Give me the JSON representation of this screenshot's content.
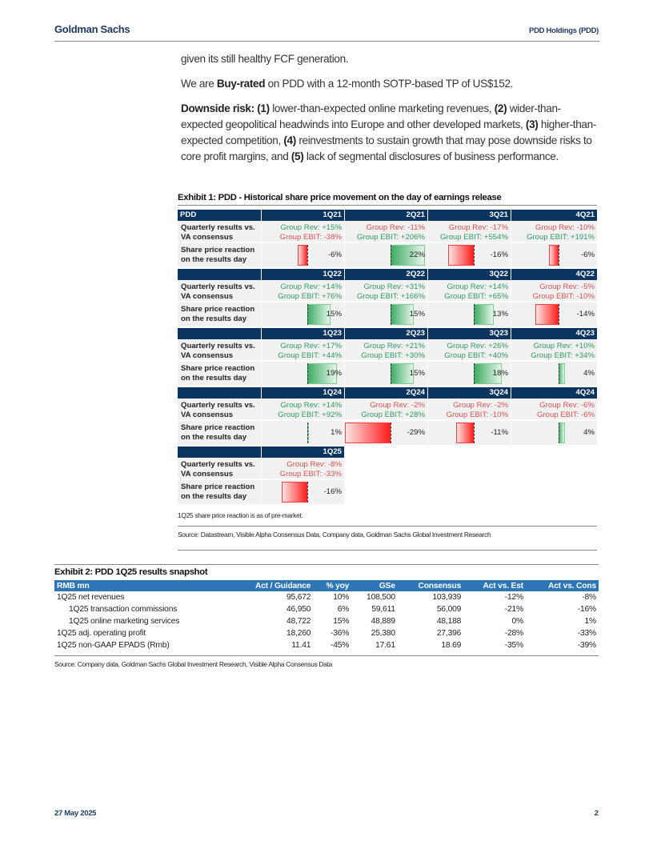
{
  "header": {
    "brand": "Goldman Sachs",
    "company": "PDD Holdings (PDD)"
  },
  "body": {
    "p1": "given its still healthy FCF generation.",
    "p2": {
      "pre": "We are ",
      "bold": "Buy-rated",
      "post": " on PDD with a 12-month SOTP-based TP of US$152."
    },
    "p3": [
      {
        "b": "Downside risk: (1)"
      },
      {
        "t": " lower-than-expected online marketing revenues, "
      },
      {
        "b": "(2)"
      },
      {
        "t": " wider-than-expected geopolitical headwinds into Europe and other developed markets, "
      },
      {
        "b": "(3)"
      },
      {
        "t": " higher-than-expected competition, "
      },
      {
        "b": "(4)"
      },
      {
        "t": " reinvestments to sustain growth that may pose downside risks to core profit margins, and "
      },
      {
        "b": "(5)"
      },
      {
        "t": " lack of segmental disclosures of business performance."
      }
    ]
  },
  "exhibit1": {
    "title": "Exhibit 1: PDD - Historical share price movement on the day of earnings release",
    "corner_label": "PDD",
    "row_label_results": "Quarterly results vs.\nVA consensus",
    "row_label_reaction": "Share price reaction\non the results day",
    "colors": {
      "positive": "#2f9a5e",
      "negative": "#d95050",
      "header": "#0b3560"
    },
    "blocks": [
      [
        {
          "q": "1Q21",
          "rev": "Group Rev: +15%",
          "ebit": "Group EBIT: -38%",
          "reaction": -6,
          "reaction_label": "-6%"
        },
        {
          "q": "2Q21",
          "rev": "Group Rev: -11%",
          "ebit": "Group EBIT: +206%",
          "reaction": 22,
          "reaction_label": "22%"
        },
        {
          "q": "3Q21",
          "rev": "Group Rev: -17%",
          "ebit": "Group EBIT: +554%",
          "reaction": -16,
          "reaction_label": "-16%"
        },
        {
          "q": "4Q21",
          "rev": "Group Rev: -10%",
          "ebit": "Group EBIT: +191%",
          "reaction": -6,
          "reaction_label": "-6%"
        }
      ],
      [
        {
          "q": "1Q22",
          "rev": "Group Rev: +14%",
          "ebit": "Group EBIT: +76%",
          "reaction": 15,
          "reaction_label": "15%"
        },
        {
          "q": "2Q22",
          "rev": "Group Rev: +31%",
          "ebit": "Group EBIT: +166%",
          "reaction": 15,
          "reaction_label": "15%"
        },
        {
          "q": "3Q22",
          "rev": "Group Rev: +14%",
          "ebit": "Group EBIT: +65%",
          "reaction": 13,
          "reaction_label": "13%"
        },
        {
          "q": "4Q22",
          "rev": "Group Rev: -5%",
          "ebit": "Group EBIT: -10%",
          "reaction": -14,
          "reaction_label": "-14%"
        }
      ],
      [
        {
          "q": "1Q23",
          "rev": "Group Rev: +17%",
          "ebit": "Group EBIT: +44%",
          "reaction": 19,
          "reaction_label": "19%"
        },
        {
          "q": "2Q23",
          "rev": "Group Rev: +21%",
          "ebit": "Group EBIT: +30%",
          "reaction": 15,
          "reaction_label": "15%"
        },
        {
          "q": "3Q23",
          "rev": "Group Rev: +26%",
          "ebit": "Group EBIT: +40%",
          "reaction": 18,
          "reaction_label": "18%"
        },
        {
          "q": "4Q23",
          "rev": "Group Rev: +10%",
          "ebit": "Group EBIT: +34%",
          "reaction": 4,
          "reaction_label": "4%"
        }
      ],
      [
        {
          "q": "1Q24",
          "rev": "Group Rev: +14%",
          "ebit": "Group EBIT: +92%",
          "reaction": 1,
          "reaction_label": "1%"
        },
        {
          "q": "2Q24",
          "rev": "Group Rev: -2%",
          "ebit": "Group EBIT: +28%",
          "reaction": -29,
          "reaction_label": "-29%"
        },
        {
          "q": "3Q24",
          "rev": "Group Rev: -2%",
          "ebit": "Group EBIT: -10%",
          "reaction": -11,
          "reaction_label": "-11%"
        },
        {
          "q": "4Q24",
          "rev": "Group Rev: -6%",
          "ebit": "Group EBIT: -6%",
          "reaction": 4,
          "reaction_label": "4%"
        }
      ],
      [
        {
          "q": "1Q25",
          "rev": "Group Rev: -8%",
          "ebit": "Group EBIT: -33%",
          "reaction": -16,
          "reaction_label": "-16%"
        }
      ]
    ],
    "note": "1Q25 share price reaction is as of pre-market.",
    "source": "Source: Datastream, Visible Alpha Consensus Data, Company data, Goldman Sachs Global Investment Research"
  },
  "exhibit2": {
    "title": "Exhibit 2: PDD 1Q25 results snapshot",
    "header_color": "#2e75b6",
    "columns": [
      "RMB mn",
      "Act / Guidance",
      "% yoy",
      "GSe",
      "Consensus",
      "Act vs. Est",
      "Act vs. Cons"
    ],
    "rows": [
      {
        "indent": false,
        "cells": [
          "1Q25 net revenues",
          "95,672",
          "10%",
          "108,500",
          "103,939",
          "-12%",
          "-8%"
        ]
      },
      {
        "indent": true,
        "cells": [
          "1Q25 transaction commissions",
          "46,950",
          "6%",
          "59,611",
          "56,009",
          "-21%",
          "-16%"
        ]
      },
      {
        "indent": true,
        "cells": [
          "1Q25 online marketing services",
          "48,722",
          "15%",
          "48,889",
          "48,188",
          "0%",
          "1%"
        ]
      },
      {
        "indent": false,
        "cells": [
          "1Q25 adj. operating profit",
          "18,260",
          "-36%",
          "25,380",
          "27,396",
          "-28%",
          "-33%"
        ]
      },
      {
        "indent": false,
        "cells": [
          "1Q25 non-GAAP EPADS (Rmb)",
          "11.41",
          "-45%",
          "17.61",
          "18.69",
          "-35%",
          "-39%"
        ]
      }
    ],
    "source": "Source: Company data, Goldman Sachs Global Investment Research, Visible Alpha Consensus Data"
  },
  "footer": {
    "date": "27 May 2025",
    "page": "2"
  }
}
